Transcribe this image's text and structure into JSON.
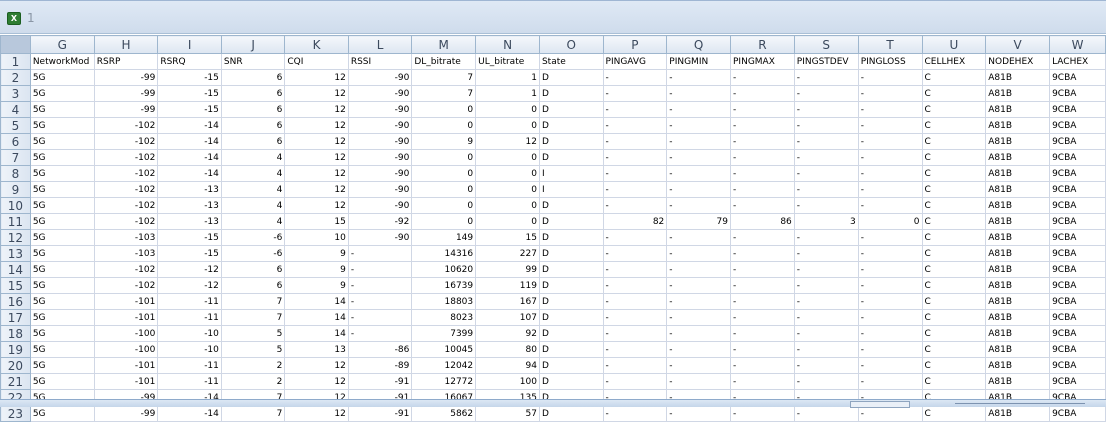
{
  "window": {
    "title": "1",
    "icon": "excel-workbook-icon"
  },
  "columns": [
    "G",
    "H",
    "I",
    "J",
    "K",
    "L",
    "M",
    "N",
    "O",
    "P",
    "Q",
    "R",
    "S",
    "T",
    "U",
    "V",
    "W"
  ],
  "rows": [
    [
      "NetworkMod",
      "RSRP",
      "RSRQ",
      "SNR",
      "CQI",
      "RSSI",
      "DL_bitrate",
      "UL_bitrate",
      "State",
      "PINGAVG",
      "PINGMIN",
      "PINGMAX",
      "PINGSTDEV",
      "PINGLOSS",
      "CELLHEX",
      "NODEHEX",
      "LACHEX"
    ],
    [
      "5G",
      "-99",
      "-15",
      "6",
      "12",
      "-90",
      "7",
      "1",
      "D",
      "-",
      "-",
      "-",
      "-",
      "-",
      "C",
      "A81B",
      "9CBA"
    ],
    [
      "5G",
      "-99",
      "-15",
      "6",
      "12",
      "-90",
      "7",
      "1",
      "D",
      "-",
      "-",
      "-",
      "-",
      "-",
      "C",
      "A81B",
      "9CBA"
    ],
    [
      "5G",
      "-99",
      "-15",
      "6",
      "12",
      "-90",
      "0",
      "0",
      "D",
      "-",
      "-",
      "-",
      "-",
      "-",
      "C",
      "A81B",
      "9CBA"
    ],
    [
      "5G",
      "-102",
      "-14",
      "6",
      "12",
      "-90",
      "0",
      "0",
      "D",
      "-",
      "-",
      "-",
      "-",
      "-",
      "C",
      "A81B",
      "9CBA"
    ],
    [
      "5G",
      "-102",
      "-14",
      "6",
      "12",
      "-90",
      "9",
      "12",
      "D",
      "-",
      "-",
      "-",
      "-",
      "-",
      "C",
      "A81B",
      "9CBA"
    ],
    [
      "5G",
      "-102",
      "-14",
      "4",
      "12",
      "-90",
      "0",
      "0",
      "D",
      "-",
      "-",
      "-",
      "-",
      "-",
      "C",
      "A81B",
      "9CBA"
    ],
    [
      "5G",
      "-102",
      "-14",
      "4",
      "12",
      "-90",
      "0",
      "0",
      "I",
      "-",
      "-",
      "-",
      "-",
      "-",
      "C",
      "A81B",
      "9CBA"
    ],
    [
      "5G",
      "-102",
      "-13",
      "4",
      "12",
      "-90",
      "0",
      "0",
      "I",
      "-",
      "-",
      "-",
      "-",
      "-",
      "C",
      "A81B",
      "9CBA"
    ],
    [
      "5G",
      "-102",
      "-13",
      "4",
      "12",
      "-90",
      "0",
      "0",
      "D",
      "-",
      "-",
      "-",
      "-",
      "-",
      "C",
      "A81B",
      "9CBA"
    ],
    [
      "5G",
      "-102",
      "-13",
      "4",
      "15",
      "-92",
      "0",
      "0",
      "D",
      "82",
      "79",
      "86",
      "3",
      "0",
      "C",
      "A81B",
      "9CBA"
    ],
    [
      "5G",
      "-103",
      "-15",
      "-6",
      "10",
      "-90",
      "149",
      "15",
      "D",
      "-",
      "-",
      "-",
      "-",
      "-",
      "C",
      "A81B",
      "9CBA"
    ],
    [
      "5G",
      "-103",
      "-15",
      "-6",
      "9",
      "-",
      "14316",
      "227",
      "D",
      "-",
      "-",
      "-",
      "-",
      "-",
      "C",
      "A81B",
      "9CBA"
    ],
    [
      "5G",
      "-102",
      "-12",
      "6",
      "9",
      "-",
      "10620",
      "99",
      "D",
      "-",
      "-",
      "-",
      "-",
      "-",
      "C",
      "A81B",
      "9CBA"
    ],
    [
      "5G",
      "-102",
      "-12",
      "6",
      "9",
      "-",
      "16739",
      "119",
      "D",
      "-",
      "-",
      "-",
      "-",
      "-",
      "C",
      "A81B",
      "9CBA"
    ],
    [
      "5G",
      "-101",
      "-11",
      "7",
      "14",
      "-",
      "18803",
      "167",
      "D",
      "-",
      "-",
      "-",
      "-",
      "-",
      "C",
      "A81B",
      "9CBA"
    ],
    [
      "5G",
      "-101",
      "-11",
      "7",
      "14",
      "-",
      "8023",
      "107",
      "D",
      "-",
      "-",
      "-",
      "-",
      "-",
      "C",
      "A81B",
      "9CBA"
    ],
    [
      "5G",
      "-100",
      "-10",
      "5",
      "14",
      "-",
      "7399",
      "92",
      "D",
      "-",
      "-",
      "-",
      "-",
      "-",
      "C",
      "A81B",
      "9CBA"
    ],
    [
      "5G",
      "-100",
      "-10",
      "5",
      "13",
      "-86",
      "10045",
      "80",
      "D",
      "-",
      "-",
      "-",
      "-",
      "-",
      "C",
      "A81B",
      "9CBA"
    ],
    [
      "5G",
      "-101",
      "-11",
      "2",
      "12",
      "-89",
      "12042",
      "94",
      "D",
      "-",
      "-",
      "-",
      "-",
      "-",
      "C",
      "A81B",
      "9CBA"
    ],
    [
      "5G",
      "-101",
      "-11",
      "2",
      "12",
      "-91",
      "12772",
      "100",
      "D",
      "-",
      "-",
      "-",
      "-",
      "-",
      "C",
      "A81B",
      "9CBA"
    ],
    [
      "5G",
      "-99",
      "-14",
      "7",
      "12",
      "-91",
      "16067",
      "135",
      "D",
      "-",
      "-",
      "-",
      "-",
      "-",
      "C",
      "A81B",
      "9CBA"
    ],
    [
      "5G",
      "-99",
      "-14",
      "7",
      "12",
      "-91",
      "5862",
      "57",
      "D",
      "-",
      "-",
      "-",
      "-",
      "-",
      "C",
      "A81B",
      "9CBA"
    ]
  ]
}
